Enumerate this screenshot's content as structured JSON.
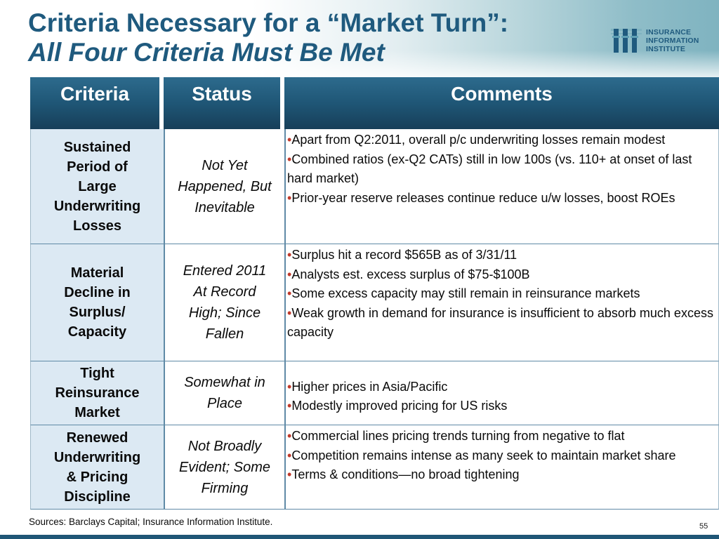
{
  "title": {
    "line1": "Criteria Necessary for a “Market Turn”:",
    "line2": "All Four Criteria Must Be Met"
  },
  "logo": {
    "line1": "INSURANCE",
    "line2": "INFORMATION",
    "line3": "INSTITUTE",
    "icon": "iii-logo-mark",
    "color": "#1f5a7e"
  },
  "table": {
    "headers": [
      "Criteria",
      "Status",
      "Comments"
    ],
    "rows": [
      {
        "criteria": [
          "Sustained",
          "Period of",
          "Large",
          "Underwriting",
          "Losses"
        ],
        "status": [
          "Not Yet",
          "Happened, But",
          "Inevitable"
        ],
        "comments": [
          "Apart from Q2:2011, overall p/c underwriting losses remain modest",
          "Combined ratios (ex-Q2 CATs) still in low 100s (vs. 110+ at onset of last hard market)",
          "Prior-year reserve releases continue reduce u/w losses, boost ROEs"
        ]
      },
      {
        "criteria": [
          "Material",
          "Decline in",
          "Surplus/",
          "Capacity"
        ],
        "status": [
          "Entered 2011",
          "At Record",
          "High; Since",
          "Fallen"
        ],
        "comments": [
          "Surplus hit a record $565B as of 3/31/11",
          "Analysts est. excess surplus of $75-$100B",
          "Some excess capacity may still remain in reinsurance markets",
          "Weak growth in demand for insurance is insufficient to absorb much excess capacity"
        ]
      },
      {
        "criteria": [
          "Tight",
          "Reinsurance",
          "Market"
        ],
        "status": [
          "Somewhat in",
          "Place"
        ],
        "comments": [
          "Higher prices in Asia/Pacific",
          "Modestly improved pricing for US risks"
        ]
      },
      {
        "criteria": [
          "Renewed",
          "Underwriting",
          "& Pricing",
          "Discipline"
        ],
        "status": [
          "Not Broadly",
          "Evident; Some",
          "Firming"
        ],
        "comments": [
          "Commercial lines pricing trends turning from negative to flat",
          "Competition remains intense as many seek to maintain market share",
          "Terms & conditions—no broad tightening"
        ]
      }
    ]
  },
  "bullet_char": "•",
  "sources": "Sources:  Barclays Capital; Insurance Information Institute.",
  "page_number": "55",
  "colors": {
    "title": "#1f5a7e",
    "header": "#1f5676",
    "criteria_bg": "#dce9f3",
    "bullet": "#c0392b"
  }
}
